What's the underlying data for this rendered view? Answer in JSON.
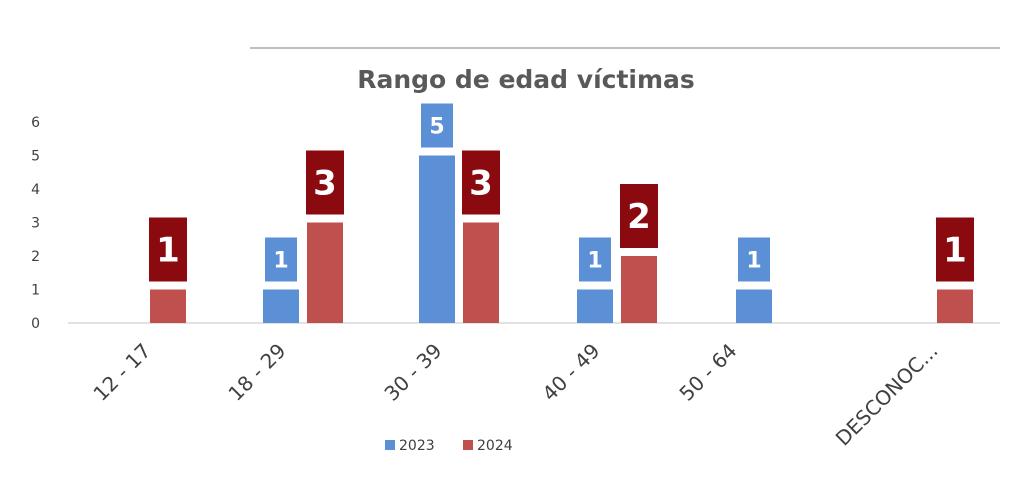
{
  "chart_data": {
    "type": "bar",
    "title": "Rango de edad víctimas",
    "categories": [
      "12 - 17",
      "18 - 29",
      "30 - 39",
      "40 - 49",
      "50 - 64",
      "DESCONOC..."
    ],
    "series": [
      {
        "name": "2023",
        "values": [
          null,
          1,
          5,
          1,
          1,
          null
        ],
        "color": "#5B8FD6",
        "label_color": "#5B8FD6"
      },
      {
        "name": "2024",
        "values": [
          1,
          3,
          3,
          2,
          null,
          1
        ],
        "color": "#C0504D",
        "label_color": "#8B0A10"
      }
    ],
    "ylim": [
      0,
      6
    ],
    "yticks": [
      "0",
      "1",
      "2",
      "3",
      "4",
      "5",
      "6"
    ],
    "grid": false,
    "legend_position": "bottom",
    "xlabel": "",
    "ylabel": ""
  }
}
